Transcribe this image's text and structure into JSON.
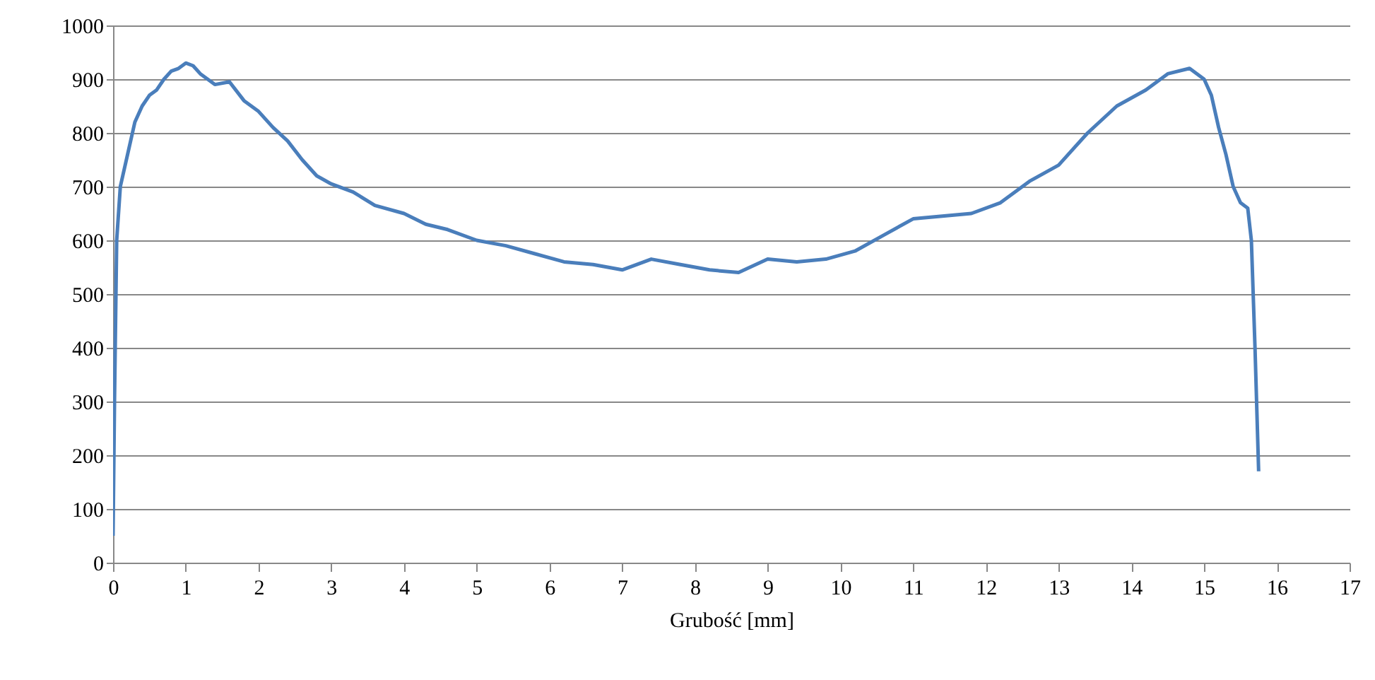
{
  "chart_data": {
    "type": "line",
    "xlabel": "Grubość [mm]",
    "x": [
      0,
      0.02,
      0.05,
      0.1,
      0.2,
      0.3,
      0.4,
      0.5,
      0.6,
      0.7,
      0.8,
      0.9,
      1.0,
      1.1,
      1.2,
      1.4,
      1.6,
      1.8,
      2.0,
      2.2,
      2.4,
      2.6,
      2.8,
      3.0,
      3.3,
      3.6,
      4.0,
      4.3,
      4.6,
      5.0,
      5.4,
      5.8,
      6.2,
      6.6,
      7.0,
      7.4,
      7.8,
      8.2,
      8.6,
      9.0,
      9.4,
      9.8,
      10.2,
      10.6,
      11.0,
      11.4,
      11.8,
      12.2,
      12.6,
      13.0,
      13.4,
      13.8,
      14.2,
      14.5,
      14.8,
      15.0,
      15.1,
      15.2,
      15.3,
      15.4,
      15.5,
      15.6,
      15.65,
      15.7,
      15.75
    ],
    "series": [
      {
        "color": "#4a7ebb",
        "values": [
          50,
          300,
          600,
          700,
          760,
          820,
          850,
          870,
          880,
          900,
          915,
          920,
          930,
          925,
          910,
          890,
          895,
          860,
          840,
          810,
          785,
          750,
          720,
          705,
          690,
          665,
          650,
          630,
          620,
          600,
          590,
          575,
          560,
          555,
          545,
          565,
          555,
          545,
          540,
          565,
          560,
          565,
          580,
          610,
          640,
          645,
          650,
          670,
          710,
          740,
          800,
          850,
          880,
          910,
          920,
          900,
          870,
          810,
          760,
          700,
          670,
          660,
          600,
          400,
          170
        ]
      }
    ],
    "xlim": [
      0,
      17
    ],
    "xticks": [
      0,
      1,
      2,
      3,
      4,
      5,
      6,
      7,
      8,
      9,
      10,
      11,
      12,
      13,
      14,
      15,
      16,
      17
    ],
    "ylim": [
      0,
      1000
    ],
    "yticks": [
      0,
      100,
      200,
      300,
      400,
      500,
      600,
      700,
      800,
      900,
      1000
    ],
    "grid": "y",
    "line_style": "solid",
    "marker": "none"
  }
}
